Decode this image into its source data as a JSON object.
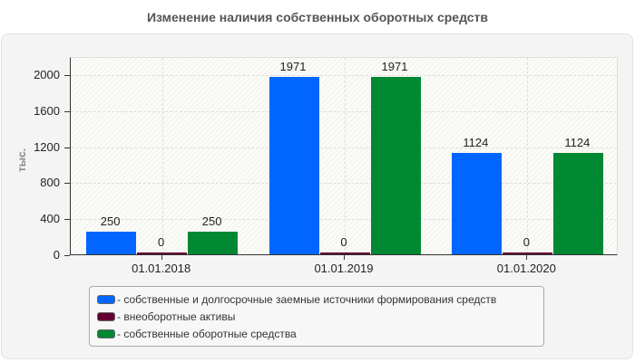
{
  "chart_data": {
    "type": "bar",
    "title": "Изменение наличия собственных оборотных средств",
    "xlabel": "",
    "ylabel": "тыс.",
    "ylim": [
      0,
      2200
    ],
    "yticks": [
      0,
      400,
      800,
      1200,
      1600,
      2000
    ],
    "grid": true,
    "legend_position": "bottom",
    "categories": [
      "01.01.2018",
      "01.01.2019",
      "01.01.2020"
    ],
    "series": [
      {
        "name": "- собственные и долгосрочные заемные источники формирования средств",
        "color": "#0066ff",
        "values": [
          250,
          1971,
          1124
        ]
      },
      {
        "name": "- внеоборотные активы",
        "color": "#660033",
        "values": [
          0,
          0,
          0
        ]
      },
      {
        "name": "- собственные оборотные средства",
        "color": "#008833",
        "values": [
          250,
          1971,
          1124
        ]
      }
    ]
  },
  "labels": {
    "title": "Изменение наличия собственных оборотных средств",
    "ylabel": "тыс.",
    "yticks": [
      "0",
      "400",
      "800",
      "1200",
      "1600",
      "2000"
    ],
    "categories": [
      "01.01.2018",
      "01.01.2019",
      "01.01.2020"
    ],
    "values": [
      [
        "250",
        "0",
        "250"
      ],
      [
        "1971",
        "0",
        "1971"
      ],
      [
        "1124",
        "0",
        "1124"
      ]
    ],
    "legend": [
      "- собственные и долгосрочные заемные источники формирования средств",
      "- внеоборотные активы",
      "- собственные оборотные средства"
    ]
  }
}
